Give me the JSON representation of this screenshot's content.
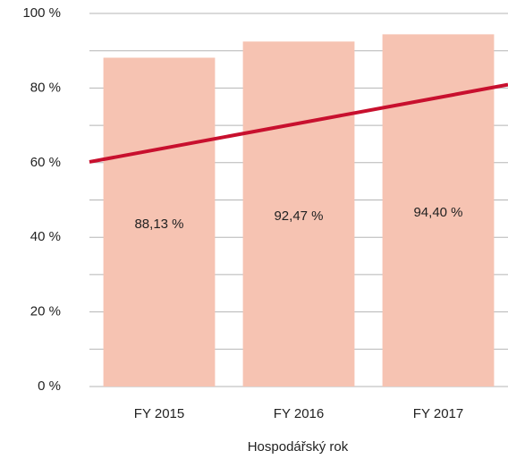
{
  "chart_data": {
    "type": "bar",
    "categories": [
      "FY 2015",
      "FY 2016",
      "FY 2017"
    ],
    "values": [
      88.13,
      92.47,
      94.4
    ],
    "value_labels": [
      "88,13 %",
      "92,47 %",
      "94,40 %"
    ],
    "color": "#f6c3b2",
    "x_label": "Hospodářský rok",
    "ylim": [
      0,
      100
    ],
    "yticks": [
      {
        "value": 0,
        "label": "0 %"
      },
      {
        "value": 20,
        "label": "20 %"
      },
      {
        "value": 40,
        "label": "40 %"
      },
      {
        "value": 60,
        "label": "60 %"
      },
      {
        "value": 80,
        "label": "80 %"
      },
      {
        "value": 100,
        "label": "100 %"
      }
    ],
    "minor_yticks": [
      10,
      30,
      50,
      70,
      90
    ],
    "grid": true,
    "trendline": {
      "color": "#c8102e",
      "values": [
        60.2,
        80.9
      ]
    }
  }
}
